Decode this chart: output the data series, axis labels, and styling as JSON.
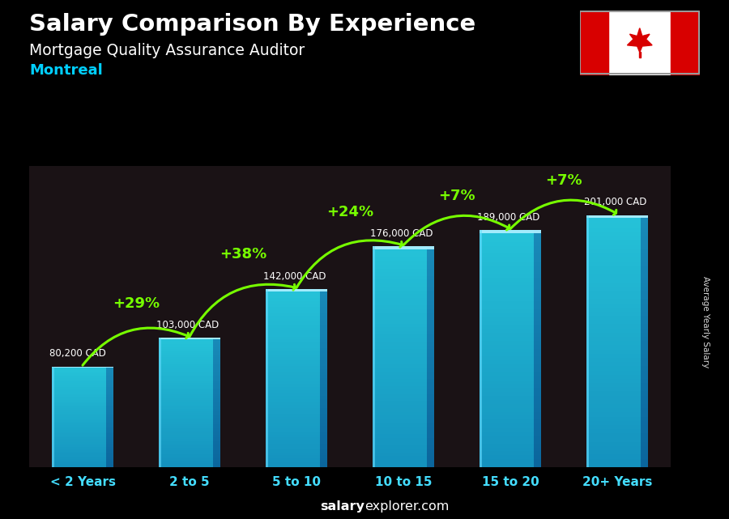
{
  "title": "Salary Comparison By Experience",
  "subtitle": "Mortgage Quality Assurance Auditor",
  "city": "Montreal",
  "categories": [
    "< 2 Years",
    "2 to 5",
    "5 to 10",
    "10 to 15",
    "15 to 20",
    "20+ Years"
  ],
  "values": [
    80200,
    103000,
    142000,
    176000,
    189000,
    201000
  ],
  "value_labels": [
    "80,200 CAD",
    "103,000 CAD",
    "142,000 CAD",
    "176,000 CAD",
    "189,000 CAD",
    "201,000 CAD"
  ],
  "pct_labels": [
    "+29%",
    "+38%",
    "+24%",
    "+7%",
    "+7%"
  ],
  "bar_main_color": "#29BFEF",
  "bar_light_color": "#55D8FF",
  "bar_dark_color": "#0A8DB8",
  "bar_top_color": "#88EEFF",
  "bar_right_color": "#1AABDA",
  "bg_overlay": "#000000",
  "title_color": "#FFFFFF",
  "subtitle_color": "#FFFFFF",
  "city_color": "#00CFFF",
  "value_label_color": "#FFFFFF",
  "pct_color": "#77FF00",
  "arrow_color": "#77FF00",
  "xlabel_color": "#44DDFF",
  "footer_bold_color": "#FFFFFF",
  "footer_normal_color": "#FFFFFF",
  "ylabel_text": "Average Yearly Salary",
  "ylim": [
    0,
    240000
  ],
  "bar_alpha": 0.85,
  "bg_colors": [
    "#3a2010",
    "#1a1a30",
    "#0a0a20",
    "#2a1505",
    "#0a0a15",
    "#151520"
  ],
  "footer_bold": "salary",
  "footer_normal": "explorer.com"
}
